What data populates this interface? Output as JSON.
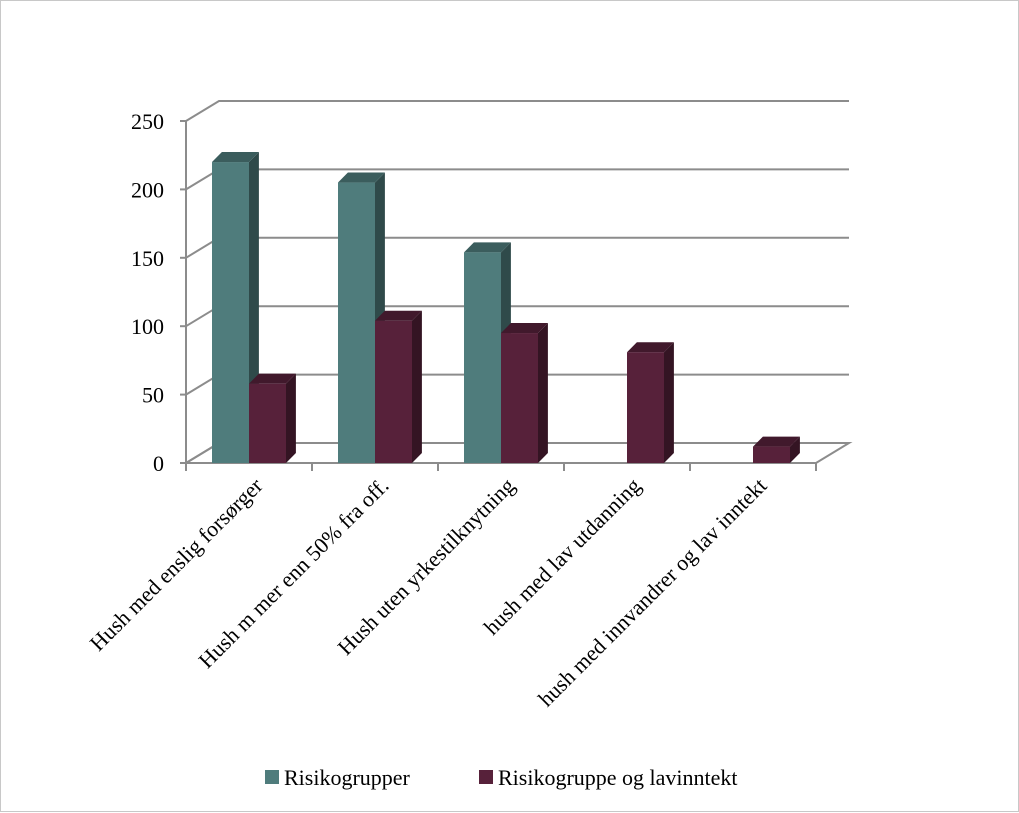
{
  "chart_data": {
    "type": "bar",
    "title": "",
    "xlabel": "",
    "ylabel": "",
    "ylim": [
      0,
      250
    ],
    "yticks": [
      0,
      50,
      100,
      150,
      200,
      250
    ],
    "grid": true,
    "legend_position": "bottom",
    "categories": [
      "Hush med enslig forsørger",
      "Hush m mer enn 50% fra off.",
      "Hush uten yrkestilknytning",
      "hush med lav utdanning",
      "hush med innvandrer og lav inntekt"
    ],
    "series": [
      {
        "name": "Risikogrupper",
        "color": "#4f7c7c",
        "values": [
          220,
          205,
          154,
          0,
          0
        ]
      },
      {
        "name": "Risikogruppe og lavinntekt",
        "color": "#57213a",
        "values": [
          58,
          104,
          95,
          81,
          12
        ]
      }
    ]
  }
}
